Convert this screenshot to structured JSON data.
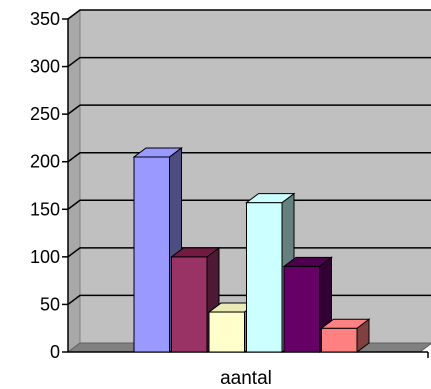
{
  "chart_data": {
    "type": "bar",
    "style": "3d-clustered-column",
    "categories": [
      "aantal"
    ],
    "series": [
      {
        "values": [
          205
        ],
        "color": "#9999FF",
        "side_color": "#4D4D80",
        "top_color": "#9999FF"
      },
      {
        "values": [
          100
        ],
        "color": "#993366",
        "side_color": "#4D1A33",
        "top_color": "#731A40"
      },
      {
        "values": [
          42
        ],
        "color": "#FFFFCC",
        "side_color": "#80806A",
        "top_color": "#EAEAB8"
      },
      {
        "values": [
          157
        ],
        "color": "#CCFFFF",
        "side_color": "#668080",
        "top_color": "#CCFFFF"
      },
      {
        "values": [
          90
        ],
        "color": "#660066",
        "side_color": "#330033",
        "top_color": "#4D004D"
      },
      {
        "values": [
          25
        ],
        "color": "#FF8080",
        "side_color": "#804040",
        "top_color": "#FF8080"
      }
    ],
    "y_ticks": [
      "0",
      "50",
      "100",
      "150",
      "200",
      "250",
      "300",
      "350"
    ],
    "ylim": [
      0,
      350
    ],
    "grid": true,
    "legend": "none",
    "xlabel": "",
    "ylabel": "",
    "colors": {
      "wall": "#C0C0C0",
      "floor": "#808080",
      "gridline": "#000000"
    }
  }
}
